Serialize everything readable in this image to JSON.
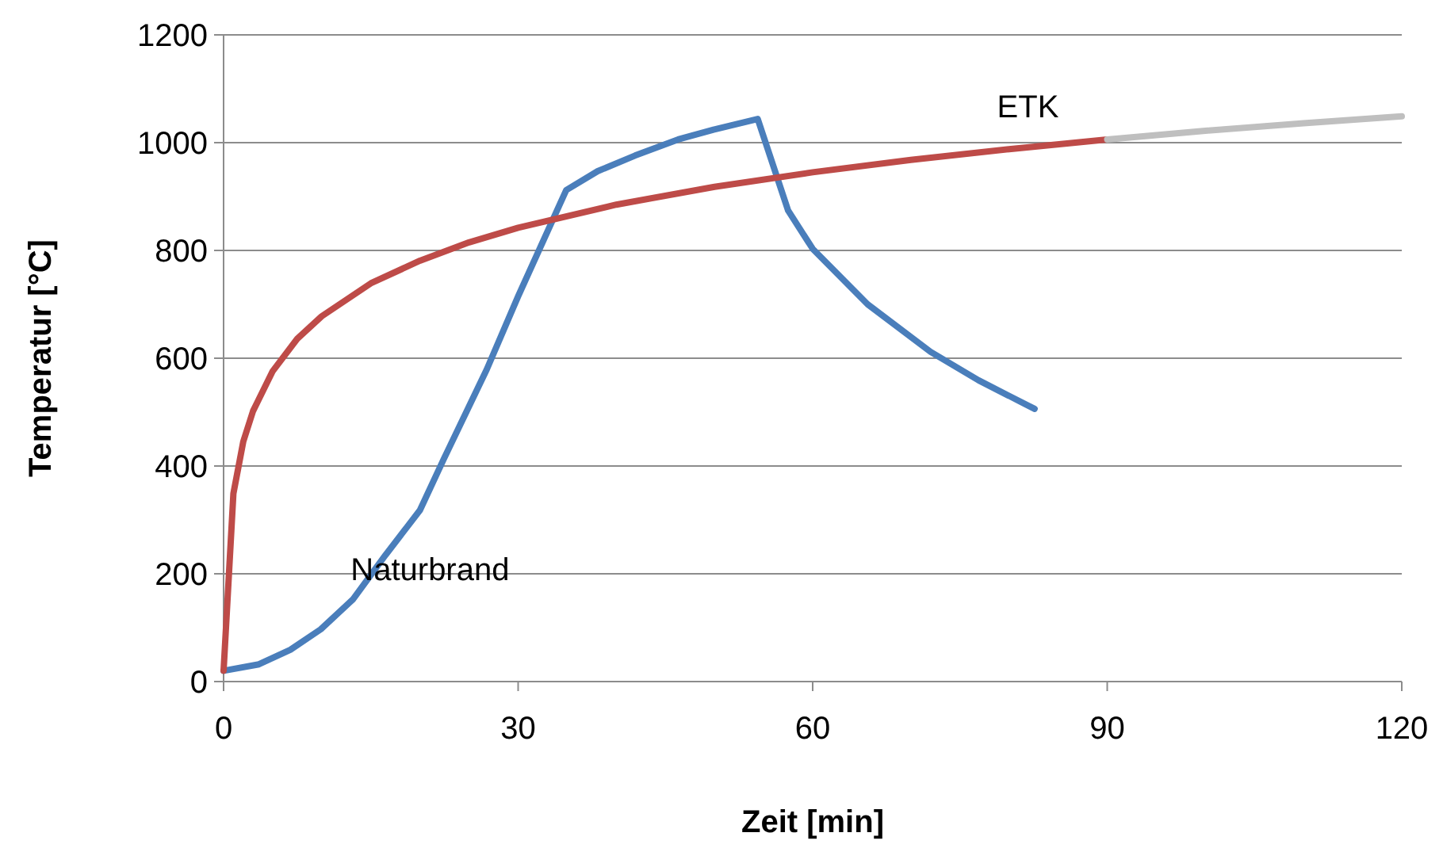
{
  "chart_data": {
    "type": "line",
    "xlabel": "Zeit [min]",
    "ylabel": "Temperatur [°C]",
    "xlim": [
      0,
      120
    ],
    "xticks": [
      0,
      30,
      60,
      90,
      120
    ],
    "ylim": [
      0,
      1200
    ],
    "yticks": [
      0,
      200,
      400,
      600,
      800,
      1000,
      1200
    ],
    "grid": "y",
    "marker": "none",
    "line_style": "solid",
    "series": [
      {
        "name": "Naturbrand",
        "color": "#4a7ebb",
        "x": [
          0,
          3.6,
          6.8,
          9.9,
          13.2,
          16.5,
          20,
          22.4,
          26.8,
          30,
          34.9,
          38.1,
          41.9,
          46.3,
          49.9,
          54.4,
          57.5,
          60,
          65.6,
          72,
          76.9,
          82.6
        ],
        "values": [
          20,
          32,
          59,
          97,
          153,
          235,
          318,
          412,
          579,
          715,
          912,
          947,
          976,
          1006,
          1024,
          1044,
          874,
          803,
          700,
          612,
          559,
          506
        ]
      },
      {
        "name": "ETK",
        "color": "#be4b48",
        "x": [
          0,
          1,
          2,
          3,
          5,
          7.5,
          10,
          15,
          20,
          25,
          30,
          40,
          50,
          60,
          70,
          80,
          90
        ],
        "values": [
          20,
          349,
          445,
          502,
          576,
          636,
          678,
          739,
          781,
          815,
          842,
          885,
          918,
          945,
          968,
          988,
          1006
        ]
      },
      {
        "color": "#bfbfbf",
        "x": [
          90,
          100,
          110,
          120
        ],
        "values": [
          1006,
          1022,
          1036,
          1049
        ]
      }
    ]
  }
}
